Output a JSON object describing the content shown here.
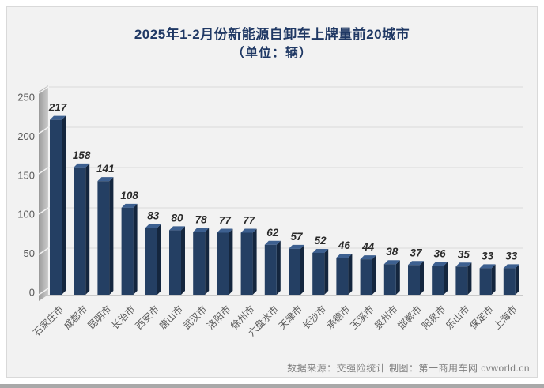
{
  "header": {
    "title": "2025年1-2月份新能源自卸车上牌量前20城市",
    "subtitle": "（单位：辆）"
  },
  "footer": {
    "credit": "数据来源：交强险统计 制图：第一商用车网 cvworld.cn"
  },
  "chart_data": {
    "type": "bar",
    "style": "3d-column",
    "title": "2025年1-2月份新能源自卸车上牌量前20城市",
    "subtitle": "（单位：辆）",
    "categories": [
      "石家庄市",
      "成都市",
      "昆明市",
      "长治市",
      "西安市",
      "唐山市",
      "武汉市",
      "洛阳市",
      "徐州市",
      "六盘水市",
      "天津市",
      "长沙市",
      "承德市",
      "玉溪市",
      "泉州市",
      "邯郸市",
      "阳泉市",
      "乐山市",
      "保定市",
      "上海市"
    ],
    "values": [
      217,
      158,
      141,
      108,
      83,
      80,
      78,
      77,
      77,
      62,
      57,
      52,
      46,
      44,
      38,
      37,
      36,
      35,
      33,
      33
    ],
    "xlabel": "",
    "ylabel": "",
    "ylim": [
      0,
      250
    ],
    "yticks": [
      0,
      50,
      100,
      150,
      200,
      250
    ],
    "grid": true,
    "legend": "none",
    "colors": {
      "bar_front": "#243F63",
      "bar_top": "#3D6090",
      "bar_side": "#14263E",
      "wall_dark": "#9A9A9A",
      "wall_light": "#CDCDCD",
      "wall_tick": "#F2F2F2",
      "gridline": "#E0E0E0",
      "axis_line": "#C9C9C9",
      "tick_label": "#595959",
      "category_label": "#595959",
      "value_label": "#2B2B2B",
      "title": "#1F3864",
      "panel_bg": "#F2F2F2"
    }
  }
}
